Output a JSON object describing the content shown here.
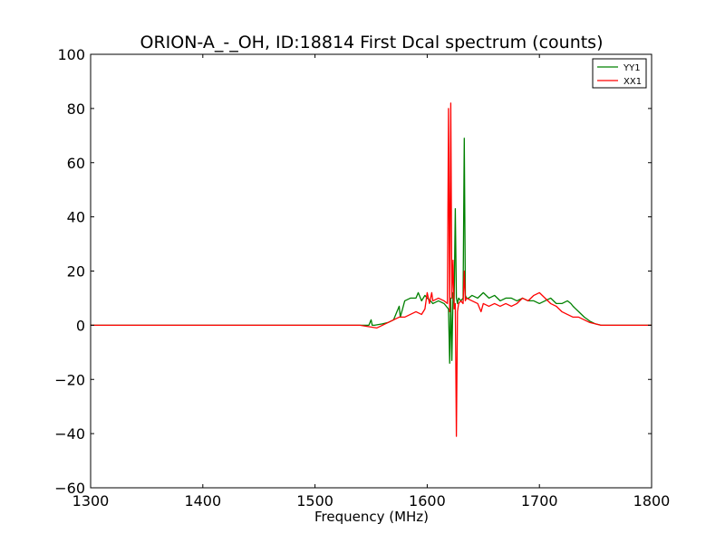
{
  "chart_data": {
    "type": "line",
    "title": "ORION-A_-_OH, ID:18814 First Dcal spectrum (counts)",
    "xlabel": "Frequency (MHz)",
    "ylabel": "",
    "xlim": [
      1300,
      1800
    ],
    "ylim": [
      -60,
      100
    ],
    "xticks": [
      1300,
      1400,
      1500,
      1600,
      1700,
      1800
    ],
    "yticks": [
      -60,
      -40,
      -20,
      0,
      20,
      40,
      60,
      80,
      100
    ],
    "ytick_labels": [
      "−60",
      "−40",
      "−20",
      "0",
      "20",
      "40",
      "60",
      "80",
      "100"
    ],
    "grid": false,
    "legend_position": "top-right",
    "series": [
      {
        "name": "YY1",
        "color": "#008000",
        "x": [
          1300,
          1500,
          1548,
          1550,
          1551,
          1553,
          1560,
          1565,
          1570,
          1573,
          1575,
          1576,
          1578,
          1580,
          1585,
          1590,
          1592,
          1595,
          1598,
          1600,
          1603,
          1605,
          1610,
          1615,
          1617,
          1619,
          1620,
          1621,
          1622,
          1623,
          1624,
          1625,
          1626,
          1627,
          1628,
          1630,
          1632,
          1633,
          1634,
          1635,
          1637,
          1640,
          1645,
          1650,
          1655,
          1660,
          1665,
          1670,
          1675,
          1680,
          1685,
          1690,
          1695,
          1700,
          1705,
          1710,
          1715,
          1720,
          1725,
          1728,
          1730,
          1735,
          1740,
          1745,
          1750,
          1755,
          1760,
          1765,
          1800
        ],
        "values": [
          0,
          0,
          0,
          2,
          0,
          0,
          0.5,
          1,
          2,
          5,
          7,
          3,
          6,
          9,
          10,
          10,
          12,
          9,
          11,
          10,
          9,
          8,
          9,
          8,
          7,
          6,
          -14,
          10,
          -13,
          12,
          8,
          43,
          10,
          8,
          10,
          9,
          10,
          69,
          11,
          10,
          10,
          11,
          10,
          12,
          10,
          11,
          9,
          10,
          10,
          9,
          10,
          9,
          9,
          8,
          9,
          10,
          8,
          8,
          9,
          8,
          7,
          5,
          3,
          1.5,
          0.5,
          0,
          0,
          0,
          0
        ]
      },
      {
        "name": "XX1",
        "color": "#ff0000",
        "x": [
          1300,
          1540,
          1555,
          1560,
          1565,
          1570,
          1575,
          1580,
          1585,
          1590,
          1595,
          1598,
          1600,
          1602,
          1604,
          1605,
          1610,
          1615,
          1618,
          1619,
          1620,
          1621,
          1622,
          1623,
          1624,
          1625,
          1626,
          1627,
          1628,
          1630,
          1632,
          1633,
          1634,
          1635,
          1640,
          1645,
          1648,
          1650,
          1655,
          1660,
          1665,
          1670,
          1675,
          1680,
          1685,
          1690,
          1695,
          1700,
          1705,
          1710,
          1715,
          1720,
          1725,
          1730,
          1735,
          1740,
          1745,
          1750,
          1755,
          1760,
          1765,
          1800
        ],
        "values": [
          0,
          0,
          -1,
          0,
          1,
          2,
          3,
          3,
          4,
          5,
          4,
          6,
          12,
          8,
          12,
          9,
          10,
          9,
          8,
          80,
          5,
          82,
          10,
          24,
          6,
          8,
          -41,
          5,
          8,
          9,
          8,
          20,
          9,
          10,
          9,
          8,
          5,
          8,
          7,
          8,
          7,
          8,
          7,
          8,
          10,
          9,
          11,
          12,
          10,
          8,
          7,
          5,
          4,
          3,
          3,
          2,
          1,
          0.5,
          0,
          0,
          0,
          0
        ]
      }
    ]
  }
}
